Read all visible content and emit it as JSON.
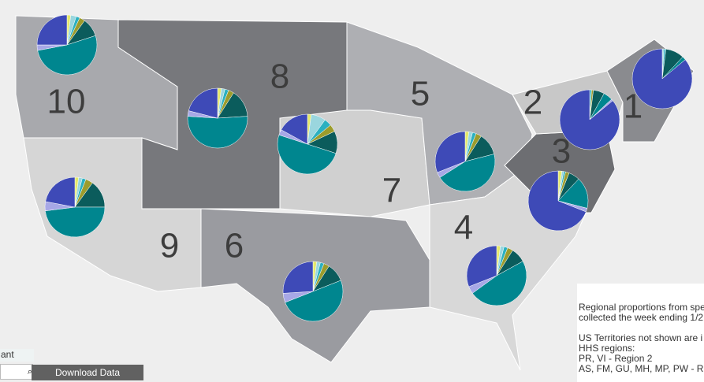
{
  "map": {
    "slice_colors": [
      "#e4e86a",
      "#9ad6de",
      "#2bb0c0",
      "#9c9c2c",
      "#0b5c5c",
      "#00868f",
      "#a7a8e6",
      "#3e4ab7"
    ],
    "regions": [
      {
        "label": "10",
        "slices": [
          2,
          3,
          2,
          3,
          10,
          52,
          3,
          25
        ]
      },
      {
        "label": "8",
        "slices": [
          2,
          2,
          2,
          3,
          15,
          52,
          3,
          21
        ]
      },
      {
        "label": "7",
        "slices": [
          2,
          8,
          4,
          4,
          12,
          50,
          3,
          17
        ]
      },
      {
        "label": "9",
        "slices": [
          2,
          2,
          2,
          4,
          15,
          48,
          5,
          22
        ]
      },
      {
        "label": "6",
        "slices": [
          2,
          2,
          2,
          3,
          10,
          50,
          5,
          26
        ]
      },
      {
        "label": "5",
        "slices": [
          2,
          2,
          2,
          3,
          12,
          45,
          3,
          31
        ]
      },
      {
        "label": "4",
        "slices": [
          2,
          2,
          2,
          3,
          8,
          48,
          4,
          31
        ]
      },
      {
        "label": "3",
        "slices": [
          2,
          1,
          1,
          2,
          6,
          17,
          2,
          69
        ]
      },
      {
        "label": "2",
        "slices": [
          0,
          0,
          1,
          1,
          6,
          5,
          1,
          86
        ]
      },
      {
        "label": "1",
        "slices": [
          0,
          1,
          1,
          0,
          10,
          2,
          0,
          86
        ]
      }
    ],
    "note_lines": [
      "Regional proportions from spe",
      "collected the week ending 1/2",
      "",
      "US Territories not shown are i",
      "HHS regions:",
      "PR, VI - Region 2",
      "AS, FM, GU, MH, MP, PW - Re"
    ],
    "filter_label": "ant",
    "download_button": "Download Data"
  }
}
